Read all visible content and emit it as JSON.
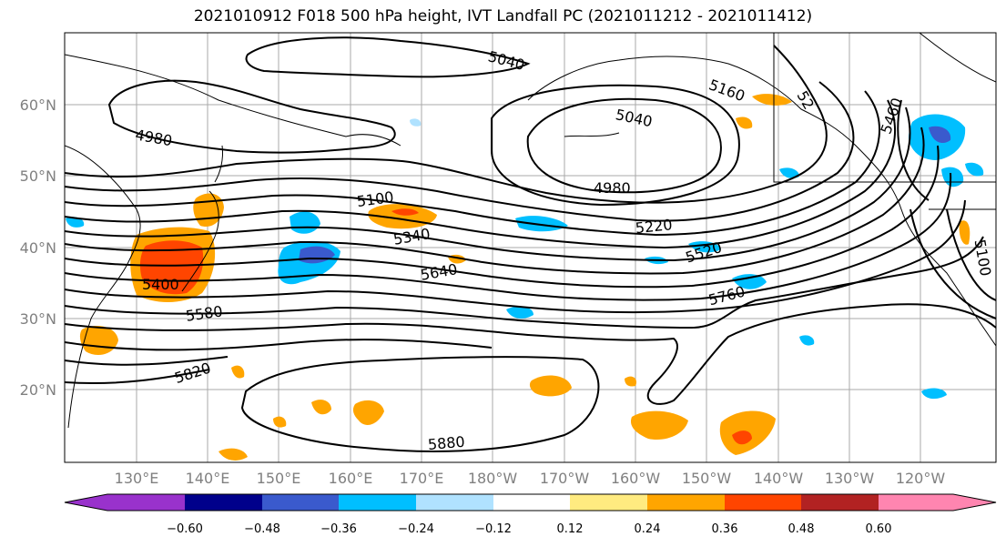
{
  "title": "2021010912 F018 500 hPa height, IVT Landfall PC (2021011212 - 2021011412)",
  "lat_labels": [
    "60°N",
    "50°N",
    "40°N",
    "30°N",
    "20°N"
  ],
  "lon_labels": [
    "130°E",
    "140°E",
    "150°E",
    "160°E",
    "170°E",
    "180°W",
    "170°W",
    "160°W",
    "150°W",
    "140°W",
    "130°W",
    "120°W"
  ],
  "contour_labels": [
    "5040",
    "5040",
    "4980",
    "4980",
    "5100",
    "5340",
    "5640",
    "5220",
    "5520",
    "5760",
    "5100",
    "5160",
    "52",
    "5460",
    "5400",
    "5580",
    "5820",
    "5880"
  ],
  "colorbar": {
    "tick_labels": [
      "−0.60",
      "−0.48",
      "−0.36",
      "−0.24",
      "−0.12",
      "0.12",
      "0.24",
      "0.36",
      "0.48",
      "0.60"
    ],
    "colors": [
      "#9932CC",
      "#00008B",
      "#3A5ACD",
      "#00BFFF",
      "#B0E2FF",
      "#FFFFFF",
      "#FFEB80",
      "#FFA500",
      "#FF4500",
      "#B22222",
      "#FF85B0"
    ]
  }
}
